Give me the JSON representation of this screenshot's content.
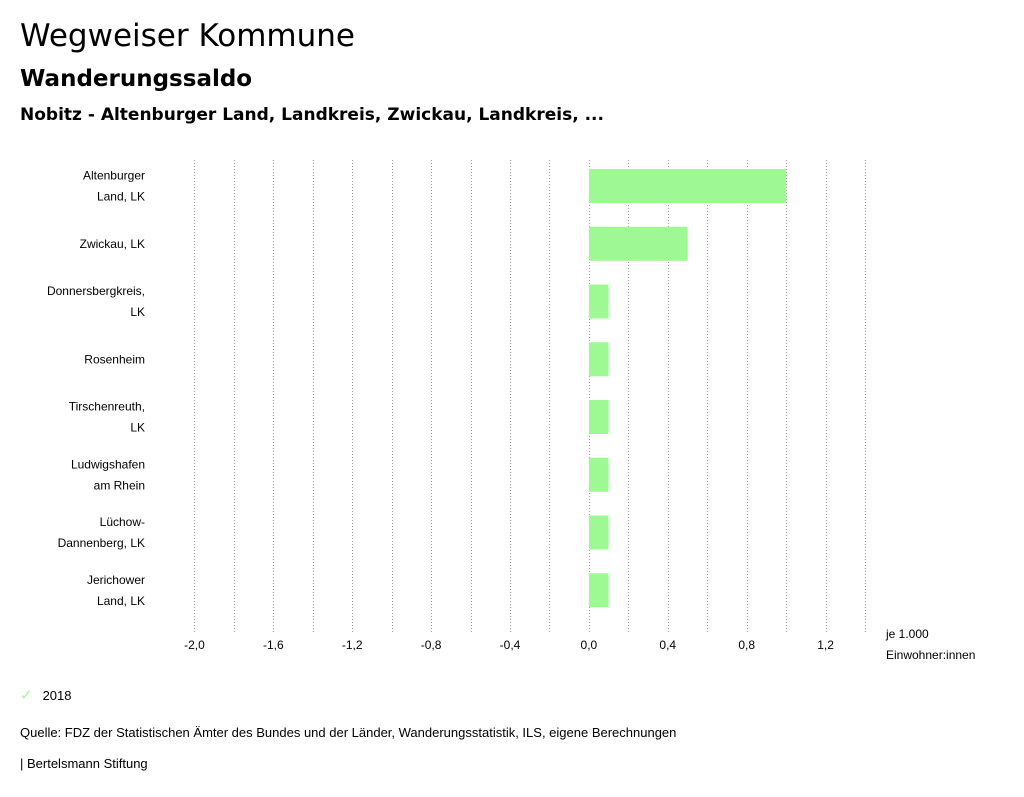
{
  "header": {
    "title": "Wegweiser Kommune",
    "subtitle": "Wanderungssaldo",
    "region": "Nobitz - Altenburger Land, Landkreis, Zwickau, Landkreis, ..."
  },
  "chart_data": {
    "type": "bar",
    "orientation": "horizontal",
    "categories": [
      [
        "Altenburger",
        "Land, LK"
      ],
      [
        "Zwickau, LK"
      ],
      [
        "Donnersbergkreis,",
        "LK"
      ],
      [
        "Rosenheim"
      ],
      [
        "Tirschenreuth,",
        "LK"
      ],
      [
        "Ludwigshafen",
        "am Rhein"
      ],
      [
        "Lüchow-",
        "Dannenberg, LK"
      ],
      [
        "Jerichower",
        "Land, LK"
      ]
    ],
    "series": [
      {
        "name": "2018",
        "values": [
          1.0,
          0.5,
          0.1,
          0.1,
          0.1,
          0.1,
          0.1,
          0.1
        ]
      }
    ],
    "xlim": [
      -2.2,
      1.4
    ],
    "xticks": [
      -2.0,
      -1.6,
      -1.2,
      -0.8,
      -0.4,
      0.0,
      0.4,
      0.8,
      1.2
    ],
    "xtick_labels": [
      "-2,0",
      "-1,6",
      "-1,2",
      "-0,8",
      "-0,4",
      "0,0",
      "0,4",
      "0,8",
      "1,2"
    ],
    "xlabel": [
      "je 1.000",
      "Einwohner:innen"
    ],
    "grid": true,
    "bar_color": "#9ef994"
  },
  "legend": {
    "label": "2018",
    "color": "#9ef994"
  },
  "footer": {
    "source": "Quelle: FDZ der Statistischen Ämter des Bundes und der Länder, Wanderungsstatistik, ILS, eigene Berechnungen",
    "credit": "| Bertelsmann Stiftung"
  }
}
